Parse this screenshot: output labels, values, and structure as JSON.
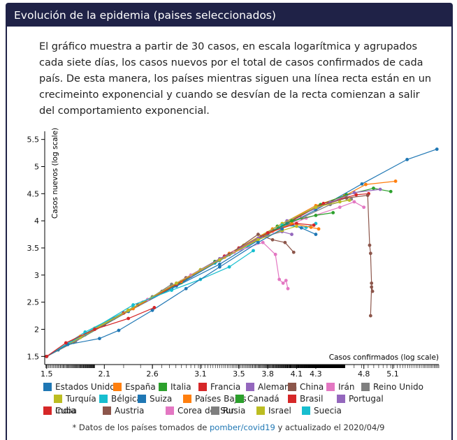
{
  "header": {
    "title": "Evolución de la epidemia (paises seleccionados)"
  },
  "intro": {
    "text": "El gráfico muestra a partir de 30 casos, en escala logarítmica y agrupados cada siete días, los casos nuevos por el total de casos confirmados de cada país. De esta manera, los países mientras siguen una línea recta están en un crecimeinto exponencial y cuando se desvían de la recta comienzan a salir del comportamiento exponencial."
  },
  "footnote": {
    "prefix": "* Datos de los países tomados de ",
    "link": "pomber/covid19",
    "suffix": " y actualizado el 2020/04/9"
  },
  "chart_data": {
    "type": "line",
    "xlabel": "Casos confirmados (log scale)",
    "ylabel": "Casos nuevos (log scale)",
    "xlim": [
      1.48,
      5.58
    ],
    "ylim": [
      1.35,
      5.65
    ],
    "x_ticks": [
      1.5,
      2.1,
      2.6,
      3.1,
      3.5,
      3.8,
      4.1,
      4.3,
      4.8,
      5.1
    ],
    "y_ticks": [
      1.5,
      2,
      2.5,
      3,
      3.5,
      4,
      4.5,
      5,
      5.5
    ],
    "grid": false,
    "legend_position": "bottom",
    "series": [
      {
        "name": "Estados Unidos",
        "color": "#1f77b4",
        "points": [
          [
            1.5,
            1.5
          ],
          [
            1.62,
            1.62
          ],
          [
            1.75,
            1.75
          ],
          [
            2.3,
            2.3
          ],
          [
            2.8,
            2.75
          ],
          [
            3.3,
            3.2
          ],
          [
            3.8,
            3.75
          ],
          [
            4.3,
            4.2
          ],
          [
            4.78,
            4.68
          ],
          [
            5.25,
            5.13
          ],
          [
            5.56,
            5.32
          ]
        ]
      },
      {
        "name": "España",
        "color": "#ff7f0e",
        "points": [
          [
            1.5,
            1.5
          ],
          [
            1.8,
            1.8
          ],
          [
            2.4,
            2.4
          ],
          [
            2.9,
            2.88
          ],
          [
            3.4,
            3.4
          ],
          [
            3.85,
            3.85
          ],
          [
            4.3,
            4.28
          ],
          [
            4.6,
            4.46
          ],
          [
            4.82,
            4.67
          ],
          [
            5.13,
            4.73
          ]
        ]
      },
      {
        "name": "Italia",
        "color": "#2ca02c",
        "points": [
          [
            1.5,
            1.5
          ],
          [
            1.78,
            1.76
          ],
          [
            2.35,
            2.33
          ],
          [
            2.9,
            2.86
          ],
          [
            3.45,
            3.42
          ],
          [
            3.9,
            3.9
          ],
          [
            4.35,
            4.3
          ],
          [
            4.62,
            4.48
          ],
          [
            4.9,
            4.6
          ],
          [
            5.08,
            4.54
          ]
        ]
      },
      {
        "name": "Francia",
        "color": "#d62728",
        "points": [
          [
            1.5,
            1.5
          ],
          [
            1.85,
            1.85
          ],
          [
            2.45,
            2.45
          ],
          [
            3.0,
            2.98
          ],
          [
            3.5,
            3.5
          ],
          [
            3.95,
            3.9
          ],
          [
            4.38,
            4.32
          ],
          [
            4.72,
            4.48
          ],
          [
            4.85,
            4.5
          ]
        ]
      },
      {
        "name": "Alemania",
        "color": "#9467bd",
        "points": [
          [
            1.5,
            1.5
          ],
          [
            1.82,
            1.82
          ],
          [
            2.4,
            2.4
          ],
          [
            2.95,
            2.95
          ],
          [
            3.5,
            3.48
          ],
          [
            4.0,
            4.0
          ],
          [
            4.45,
            4.34
          ],
          [
            4.7,
            4.52
          ],
          [
            4.97,
            4.58
          ]
        ]
      },
      {
        "name": "China",
        "color": "#8c564b",
        "points": [
          [
            1.5,
            1.5
          ],
          [
            2.1,
            2.08
          ],
          [
            2.7,
            2.7
          ],
          [
            3.3,
            3.3
          ],
          [
            3.85,
            3.82
          ],
          [
            4.3,
            4.25
          ],
          [
            4.62,
            4.42
          ],
          [
            4.84,
            4.47
          ],
          [
            4.86,
            3.55
          ],
          [
            4.87,
            3.4
          ],
          [
            4.88,
            2.85
          ],
          [
            4.89,
            2.7
          ],
          [
            4.88,
            2.78
          ],
          [
            4.87,
            2.25
          ]
        ]
      },
      {
        "name": "Irán",
        "color": "#e377c2",
        "points": [
          [
            1.5,
            1.5
          ],
          [
            1.9,
            1.9
          ],
          [
            2.5,
            2.5
          ],
          [
            2.95,
            2.95
          ],
          [
            3.4,
            3.38
          ],
          [
            3.85,
            3.8
          ],
          [
            4.2,
            4.05
          ],
          [
            4.55,
            4.25
          ],
          [
            4.7,
            4.35
          ],
          [
            4.8,
            4.25
          ]
        ]
      },
      {
        "name": "Reino Unido",
        "color": "#7f7f7f",
        "points": [
          [
            1.5,
            1.5
          ],
          [
            1.8,
            1.78
          ],
          [
            2.3,
            2.3
          ],
          [
            2.85,
            2.83
          ],
          [
            3.3,
            3.28
          ],
          [
            3.75,
            3.72
          ],
          [
            4.15,
            4.05
          ],
          [
            4.45,
            4.3
          ],
          [
            4.67,
            4.4
          ]
        ]
      },
      {
        "name": "Turquía",
        "color": "#bcbd22",
        "points": [
          [
            1.5,
            1.5
          ],
          [
            2.0,
            2.02
          ],
          [
            2.6,
            2.6
          ],
          [
            3.1,
            3.1
          ],
          [
            3.55,
            3.55
          ],
          [
            3.95,
            3.95
          ],
          [
            4.3,
            4.25
          ],
          [
            4.55,
            4.35
          ],
          [
            4.65,
            4.38
          ]
        ]
      },
      {
        "name": "Bélgica",
        "color": "#17becf",
        "points": [
          [
            1.5,
            1.5
          ],
          [
            1.9,
            1.95
          ],
          [
            2.4,
            2.4
          ],
          [
            2.8,
            2.78
          ],
          [
            3.25,
            3.22
          ],
          [
            3.6,
            3.55
          ],
          [
            3.95,
            3.92
          ],
          [
            4.2,
            3.88
          ],
          [
            4.3,
            3.95
          ]
        ]
      },
      {
        "name": "Suiza",
        "color": "#1f77b4",
        "points": [
          [
            1.5,
            1.5
          ],
          [
            1.85,
            1.85
          ],
          [
            2.35,
            2.33
          ],
          [
            2.85,
            2.8
          ],
          [
            3.3,
            3.27
          ],
          [
            3.7,
            3.65
          ],
          [
            4.0,
            3.95
          ],
          [
            4.15,
            3.87
          ],
          [
            4.3,
            3.75
          ]
        ]
      },
      {
        "name": "Países Bajos",
        "color": "#ff7f0e",
        "points": [
          [
            1.5,
            1.5
          ],
          [
            1.85,
            1.87
          ],
          [
            2.4,
            2.38
          ],
          [
            2.9,
            2.88
          ],
          [
            3.35,
            3.33
          ],
          [
            3.75,
            3.72
          ],
          [
            4.05,
            3.95
          ],
          [
            4.25,
            3.88
          ],
          [
            4.33,
            3.85
          ]
        ]
      },
      {
        "name": "Canadá",
        "color": "#2ca02c",
        "points": [
          [
            1.5,
            1.5
          ],
          [
            1.8,
            1.8
          ],
          [
            2.35,
            2.35
          ],
          [
            2.8,
            2.8
          ],
          [
            3.25,
            3.25
          ],
          [
            3.7,
            3.68
          ],
          [
            4.05,
            4.0
          ],
          [
            4.3,
            4.1
          ],
          [
            4.48,
            4.15
          ]
        ]
      },
      {
        "name": "Brasil",
        "color": "#d62728",
        "points": [
          [
            1.5,
            1.5
          ],
          [
            1.78,
            1.78
          ],
          [
            2.3,
            2.3
          ],
          [
            2.85,
            2.83
          ],
          [
            3.35,
            3.35
          ],
          [
            3.8,
            3.78
          ],
          [
            4.1,
            3.95
          ],
          [
            4.28,
            3.92
          ]
        ]
      },
      {
        "name": "Portugal",
        "color": "#9467bd",
        "points": [
          [
            1.5,
            1.5
          ],
          [
            1.85,
            1.85
          ],
          [
            2.35,
            2.35
          ],
          [
            2.85,
            2.85
          ],
          [
            3.3,
            3.3
          ],
          [
            3.7,
            3.68
          ],
          [
            3.95,
            3.8
          ],
          [
            4.05,
            3.75
          ]
        ]
      },
      {
        "name": "Austria",
        "color": "#8c564b",
        "points": [
          [
            1.5,
            1.5
          ],
          [
            1.9,
            1.9
          ],
          [
            2.45,
            2.45
          ],
          [
            2.95,
            2.95
          ],
          [
            3.4,
            3.38
          ],
          [
            3.7,
            3.75
          ],
          [
            3.85,
            3.65
          ],
          [
            3.98,
            3.6
          ],
          [
            4.07,
            3.42
          ]
        ]
      },
      {
        "name": "Corea del Sur",
        "color": "#e377c2",
        "points": [
          [
            1.5,
            1.5
          ],
          [
            2.0,
            2.0
          ],
          [
            2.55,
            2.55
          ],
          [
            3.0,
            3.0
          ],
          [
            3.45,
            3.42
          ],
          [
            3.75,
            3.6
          ],
          [
            3.88,
            3.38
          ],
          [
            3.92,
            2.92
          ],
          [
            3.96,
            2.85
          ],
          [
            3.99,
            2.9
          ],
          [
            4.01,
            2.75
          ]
        ]
      },
      {
        "name": "Rusia",
        "color": "#7f7f7f",
        "points": [
          [
            1.5,
            1.5
          ],
          [
            1.8,
            1.78
          ],
          [
            2.2,
            2.2
          ],
          [
            2.6,
            2.6
          ],
          [
            2.8,
            2.83
          ]
        ]
      },
      {
        "name": "Israel",
        "color": "#bcbd22",
        "points": [
          [
            1.5,
            1.5
          ],
          [
            1.85,
            1.85
          ],
          [
            2.35,
            2.35
          ],
          [
            2.85,
            2.85
          ],
          [
            3.3,
            3.28
          ],
          [
            3.7,
            3.65
          ],
          [
            3.95,
            3.82
          ],
          [
            4.1,
            3.9
          ]
        ]
      },
      {
        "name": "Suecia",
        "color": "#17becf",
        "points": [
          [
            1.5,
            1.5
          ],
          [
            1.9,
            1.92
          ],
          [
            2.4,
            2.45
          ],
          [
            2.8,
            2.72
          ],
          [
            3.1,
            2.92
          ],
          [
            3.4,
            3.15
          ],
          [
            3.65,
            3.45
          ]
        ]
      },
      {
        "name": "India",
        "color": "#1f77b4",
        "points": [
          [
            1.5,
            1.5
          ],
          [
            1.72,
            1.72
          ],
          [
            2.05,
            1.83
          ],
          [
            2.25,
            1.98
          ],
          [
            2.6,
            2.35
          ],
          [
            2.95,
            2.75
          ],
          [
            3.3,
            3.15
          ],
          [
            3.7,
            3.6
          ],
          [
            3.95,
            3.85
          ]
        ]
      },
      {
        "name": "Cuba",
        "color": "#d62728",
        "points": [
          [
            1.5,
            1.5
          ],
          [
            1.7,
            1.75
          ],
          [
            2.0,
            2.0
          ],
          [
            2.35,
            2.2
          ],
          [
            2.62,
            2.4
          ]
        ]
      }
    ]
  }
}
